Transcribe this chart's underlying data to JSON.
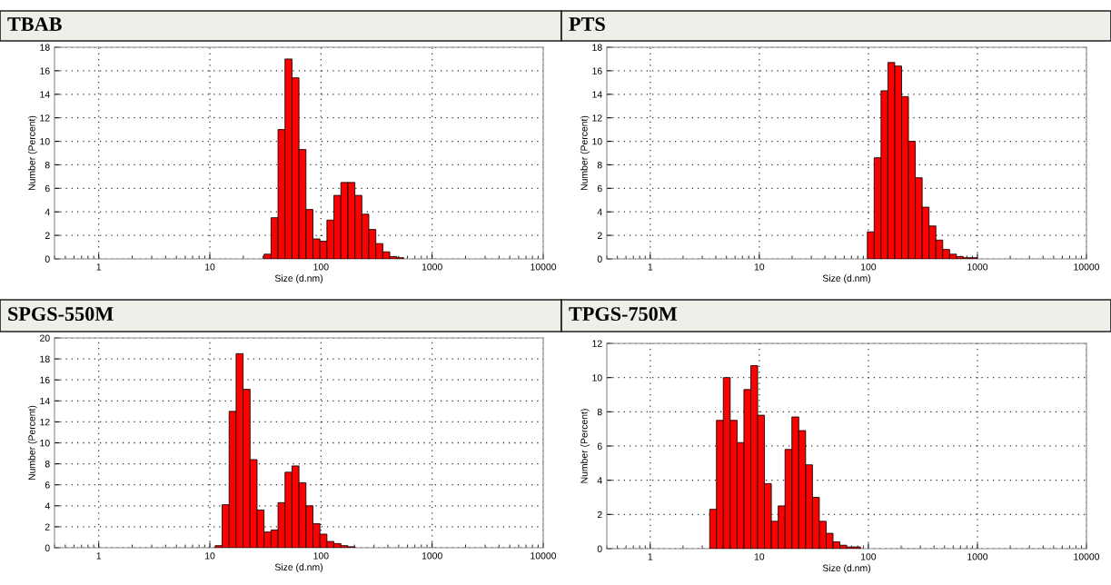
{
  "chart_data": [
    {
      "type": "histogram",
      "title": "TBAB",
      "xlabel": "Size (d.nm)",
      "ylabel": "Number (Percent)",
      "color": "#ff0000",
      "log": "x",
      "grid": true,
      "bins": [
        30.74,
        35.53,
        41.06,
        47.46,
        54.85,
        63.39,
        73.26,
        84.67,
        97.86,
        113.1,
        130.7,
        151.1,
        174.6,
        201.8,
        233.2,
        269.5,
        311.5,
        360.0,
        416.1,
        480.9,
        555.8
      ],
      "values": [
        0.4,
        3.5,
        11.0,
        17.0,
        15.4,
        9.3,
        4.2,
        1.7,
        1.5,
        3.3,
        5.4,
        6.5,
        6.5,
        5.4,
        3.8,
        2.5,
        1.3,
        0.6,
        0.2,
        0.1
      ],
      "xlim": [
        0.4,
        10000
      ],
      "xticks": [
        1,
        10,
        100,
        1000,
        10000
      ],
      "ylim": [
        0,
        18
      ],
      "yticks": [
        0,
        2,
        4,
        6,
        8,
        10,
        12,
        14,
        16,
        18
      ]
    },
    {
      "type": "histogram",
      "title": "PTS",
      "xlabel": "Size (d.nm)",
      "ylabel": "Number (Percent)",
      "color": "#ff0000",
      "log": "x",
      "grid": true,
      "bins": [
        97.86,
        113.1,
        130.7,
        151.1,
        174.6,
        201.8,
        233.2,
        269.5,
        311.5,
        360.0,
        416.1,
        480.9,
        555.8,
        642.3,
        742.3,
        857.9,
        991.5
      ],
      "values": [
        2.3,
        8.6,
        14.3,
        16.7,
        16.4,
        13.8,
        10.0,
        6.9,
        4.4,
        2.8,
        1.6,
        0.8,
        0.4,
        0.2,
        0.1,
        0.1
      ],
      "xlim": [
        0.4,
        10000
      ],
      "xticks": [
        1,
        10,
        100,
        1000,
        10000
      ],
      "ylim": [
        0,
        18
      ],
      "yticks": [
        0,
        2,
        4,
        6,
        8,
        10,
        12,
        14,
        16,
        18
      ]
    },
    {
      "type": "histogram",
      "title": "SPGS-550M",
      "xlabel": "Size (d.nm)",
      "ylabel": "Number (Percent)",
      "color": "#ff0000",
      "log": "x",
      "grid": true,
      "bins": [
        11.16,
        12.9,
        14.91,
        17.23,
        19.91,
        23.01,
        26.6,
        30.74,
        35.53,
        41.06,
        47.46,
        54.85,
        63.39,
        73.26,
        84.67,
        97.86,
        113.1,
        130.7,
        151.1,
        174.6,
        201.8
      ],
      "values": [
        0.2,
        4.1,
        13.0,
        18.5,
        15.1,
        8.4,
        3.6,
        1.5,
        1.7,
        4.3,
        7.2,
        7.8,
        6.2,
        4.0,
        2.3,
        1.3,
        0.6,
        0.4,
        0.2,
        0.1
      ],
      "xlim": [
        0.4,
        10000
      ],
      "xticks": [
        1,
        10,
        100,
        1000,
        10000
      ],
      "ylim": [
        0,
        20
      ],
      "yticks": [
        0,
        2,
        4,
        6,
        8,
        10,
        12,
        14,
        16,
        18,
        20
      ]
    },
    {
      "type": "histogram",
      "title": "TPGS-750M",
      "xlabel": "Size (d.nm)",
      "ylabel": "Number (Percent)",
      "color": "#ff0000",
      "log": "x",
      "grid": true,
      "bins": [
        3.51,
        4.05,
        4.68,
        5.41,
        6.26,
        7.23,
        8.36,
        9.66,
        11.16,
        12.9,
        14.91,
        17.23,
        19.91,
        23.01,
        26.6,
        30.74,
        35.53,
        41.06,
        47.46,
        54.85,
        63.39,
        73.26,
        84.67
      ],
      "values": [
        2.3,
        7.5,
        10.0,
        7.5,
        6.2,
        9.3,
        10.7,
        7.8,
        3.8,
        1.6,
        2.5,
        5.8,
        7.7,
        6.9,
        4.9,
        3.0,
        1.6,
        0.9,
        0.4,
        0.2,
        0.1,
        0.1
      ],
      "xlim": [
        0.4,
        10000
      ],
      "xticks": [
        1,
        10,
        100,
        1000,
        10000
      ],
      "ylim": [
        0,
        12
      ],
      "yticks": [
        0,
        2,
        4,
        6,
        8,
        10,
        12
      ]
    }
  ]
}
